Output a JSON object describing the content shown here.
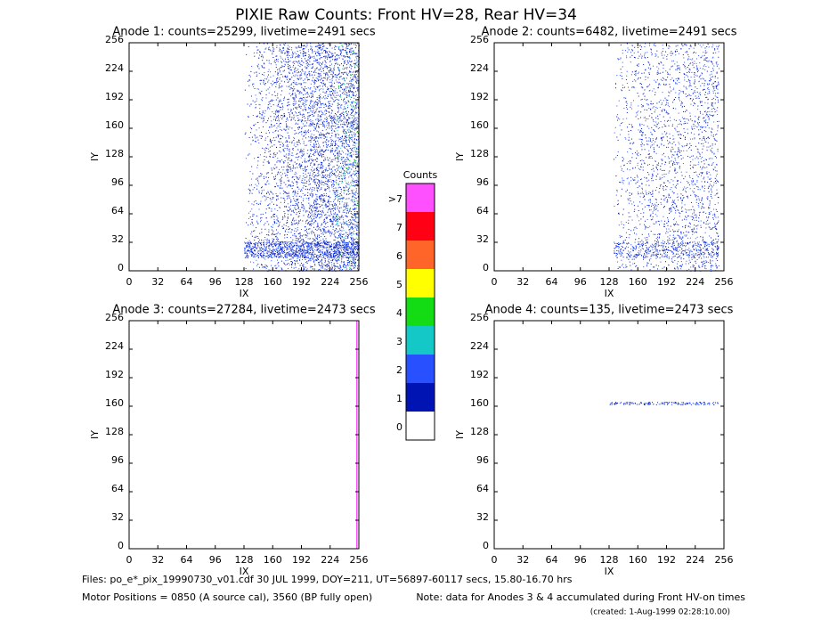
{
  "header": {
    "title": "PIXIE Raw Counts:  Front HV=28, Rear HV=34"
  },
  "chart_data": [
    {
      "type": "heatmap",
      "title": "Anode 1: counts=25299, livetime=2491 secs",
      "xlabel": "IX",
      "ylabel": "IY",
      "xlim": [
        0,
        256
      ],
      "ylim": [
        0,
        256
      ],
      "xticks": [
        0,
        32,
        64,
        96,
        128,
        160,
        192,
        224,
        256
      ],
      "yticks": [
        0,
        32,
        64,
        96,
        128,
        160,
        192,
        224,
        256
      ]
    },
    {
      "type": "heatmap",
      "title": "Anode 2: counts=6482, livetime=2491 secs",
      "xlabel": "IX",
      "ylabel": "IY",
      "xlim": [
        0,
        256
      ],
      "ylim": [
        0,
        256
      ],
      "xticks": [
        0,
        32,
        64,
        96,
        128,
        160,
        192,
        224,
        256
      ],
      "yticks": [
        0,
        32,
        64,
        96,
        128,
        160,
        192,
        224,
        256
      ]
    },
    {
      "type": "heatmap",
      "title": "Anode 3: counts=27284, livetime=2473 secs",
      "xlabel": "IX",
      "ylabel": "IY",
      "xlim": [
        0,
        256
      ],
      "ylim": [
        0,
        256
      ],
      "xticks": [
        0,
        32,
        64,
        96,
        128,
        160,
        192,
        224,
        256
      ],
      "yticks": [
        0,
        32,
        64,
        96,
        128,
        160,
        192,
        224,
        256
      ]
    },
    {
      "type": "heatmap",
      "title": "Anode 4: counts=135, livetime=2473 secs",
      "xlabel": "IX",
      "ylabel": "IY",
      "xlim": [
        0,
        256
      ],
      "ylim": [
        0,
        256
      ],
      "xticks": [
        0,
        32,
        64,
        96,
        128,
        160,
        192,
        224,
        256
      ],
      "yticks": [
        0,
        32,
        64,
        96,
        128,
        160,
        192,
        224,
        256
      ]
    },
    {
      "type": "colorbar",
      "title": "Counts",
      "categories": [
        "0",
        "1",
        "2",
        "3",
        "4",
        "5",
        "6",
        "7",
        ">7"
      ],
      "colors": [
        "#ffffff",
        "#0014b4",
        "#2850ff",
        "#14c8c8",
        "#14dc14",
        "#ffff00",
        "#ff6428",
        "#ff0014",
        "#ff50ff"
      ]
    }
  ],
  "footer": {
    "files": "Files: po_e*_pix_19990730_v01.cdf    30 JUL 1999, DOY=211, UT=56897-60117 secs, 15.80-16.70 hrs",
    "motor": "Motor Positions = 0850 (A source cal), 3560 (BP fully open)",
    "note": "Note: data for Anodes 3 & 4 accumulated during Front HV-on times",
    "created": "(created:  1-Aug-1999 02:28:10.00)"
  }
}
